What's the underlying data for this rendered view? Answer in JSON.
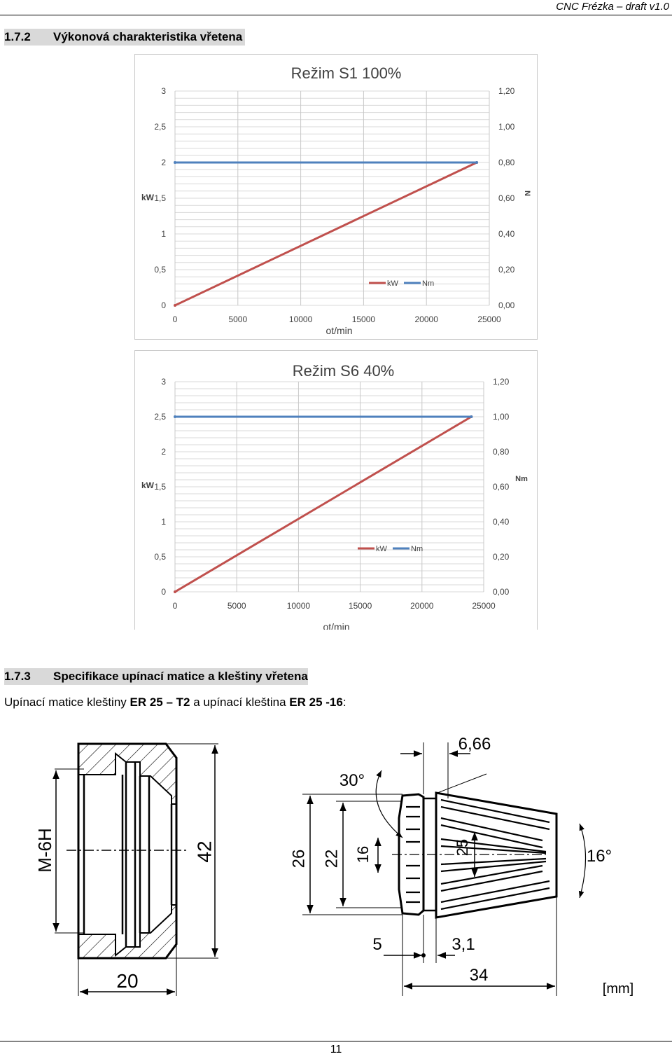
{
  "header": {
    "right_text": "CNC Frézka – draft v1.0"
  },
  "section1": {
    "number": "1.7.2",
    "title": "Výkonová charakteristika vřetena"
  },
  "section2": {
    "number": "1.7.3",
    "title": "Specifikace upínací matice a kleštiny vřetena"
  },
  "body": {
    "prefix": "Upínací matice kleštiny ",
    "nut": "ER 25 – T2",
    "middle": " a upínací kleština  ",
    "collet": "ER 25 -16",
    "suffix": ":"
  },
  "chart_data": [
    {
      "type": "line",
      "title": "Režim S1 100%",
      "xlabel": "ot/min",
      "ylabel": "kW",
      "y2label": "N",
      "x_ticks": [
        "0",
        "5000",
        "10000",
        "15000",
        "20000",
        "25000"
      ],
      "y_ticks": [
        "0",
        "0,5",
        "1",
        "1,5",
        "2",
        "2,5",
        "3"
      ],
      "y2_ticks": [
        "0,00",
        "0,20",
        "0,40",
        "0,60",
        "0,80",
        "1,00",
        "1,20"
      ],
      "xlim": [
        0,
        25000
      ],
      "ylim": [
        0,
        3
      ],
      "y2lim": [
        0,
        1.2
      ],
      "grid": true,
      "legend_position": "bottom-right",
      "series": [
        {
          "name": "kW",
          "color": "#c0504d",
          "x": [
            0,
            24000
          ],
          "y": [
            0,
            2
          ]
        },
        {
          "name": "Nm",
          "color": "#4f81bd",
          "x": [
            0,
            24000
          ],
          "y": [
            0.8,
            0.8
          ],
          "axis": "y2"
        }
      ]
    },
    {
      "type": "line",
      "title": "Režim S6 40%",
      "xlabel": "ot/min",
      "ylabel": "kW",
      "y2label": "Nm",
      "x_ticks": [
        "0",
        "5000",
        "10000",
        "15000",
        "20000",
        "25000"
      ],
      "y_ticks": [
        "0",
        "0,5",
        "1",
        "1,5",
        "2",
        "2,5",
        "3"
      ],
      "y2_ticks": [
        "0,00",
        "0,20",
        "0,40",
        "0,60",
        "0,80",
        "1,00",
        "1,20"
      ],
      "xlim": [
        0,
        25000
      ],
      "ylim": [
        0,
        3
      ],
      "y2lim": [
        0,
        1.2
      ],
      "grid": true,
      "legend_position": "bottom-right",
      "series": [
        {
          "name": "kW",
          "color": "#c0504d",
          "x": [
            0,
            24000
          ],
          "y": [
            0,
            2.5
          ]
        },
        {
          "name": "Nm",
          "color": "#4f81bd",
          "x": [
            0,
            24000
          ],
          "y": [
            1.0,
            1.0
          ],
          "axis": "y2"
        }
      ]
    }
  ],
  "drawing_nut": {
    "thread": "M-6H",
    "diameter": "42",
    "width": "20"
  },
  "drawing_collet": {
    "d_top": "6,66",
    "angle_top": "30°",
    "d26": "26",
    "d22": "22",
    "d16": "16",
    "d25": "25",
    "angle_right": "16°",
    "d5": "5",
    "d3_1": "3,1",
    "d34": "34",
    "unit": "[mm]"
  },
  "footer": {
    "page": "11"
  }
}
